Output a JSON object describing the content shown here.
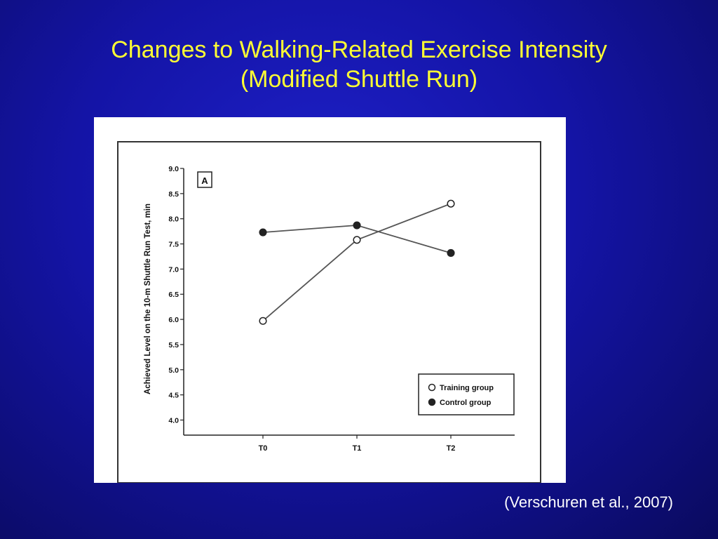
{
  "slide": {
    "title_line1": "Changes to Walking-Related Exercise Intensity",
    "title_line2": "(Modified Shuttle Run)",
    "citation": "(Verschuren et al., 2007)"
  },
  "colors": {
    "background": "#1414a6",
    "title": "#ffff33",
    "citation": "#ffffff"
  },
  "chart_data": {
    "type": "line",
    "panel_label": "A",
    "ylabel": "Achieved Level on the 10-m Shuttle Run Test, min",
    "xlabel": "",
    "categories": [
      "T0",
      "T1",
      "T2"
    ],
    "ylim": [
      3.7,
      9.0
    ],
    "yticks": [
      "4.0",
      "4.5",
      "5.0",
      "5.5",
      "6.0",
      "6.5",
      "7.0",
      "7.5",
      "8.0",
      "8.5",
      "9.0"
    ],
    "grid": false,
    "legend_position": "bottom-right",
    "series": [
      {
        "name": "Training group",
        "marker": "open-circle",
        "values": [
          5.97,
          7.58,
          8.3
        ]
      },
      {
        "name": "Control group",
        "marker": "filled-circle",
        "values": [
          7.73,
          7.87,
          7.32
        ]
      }
    ]
  }
}
